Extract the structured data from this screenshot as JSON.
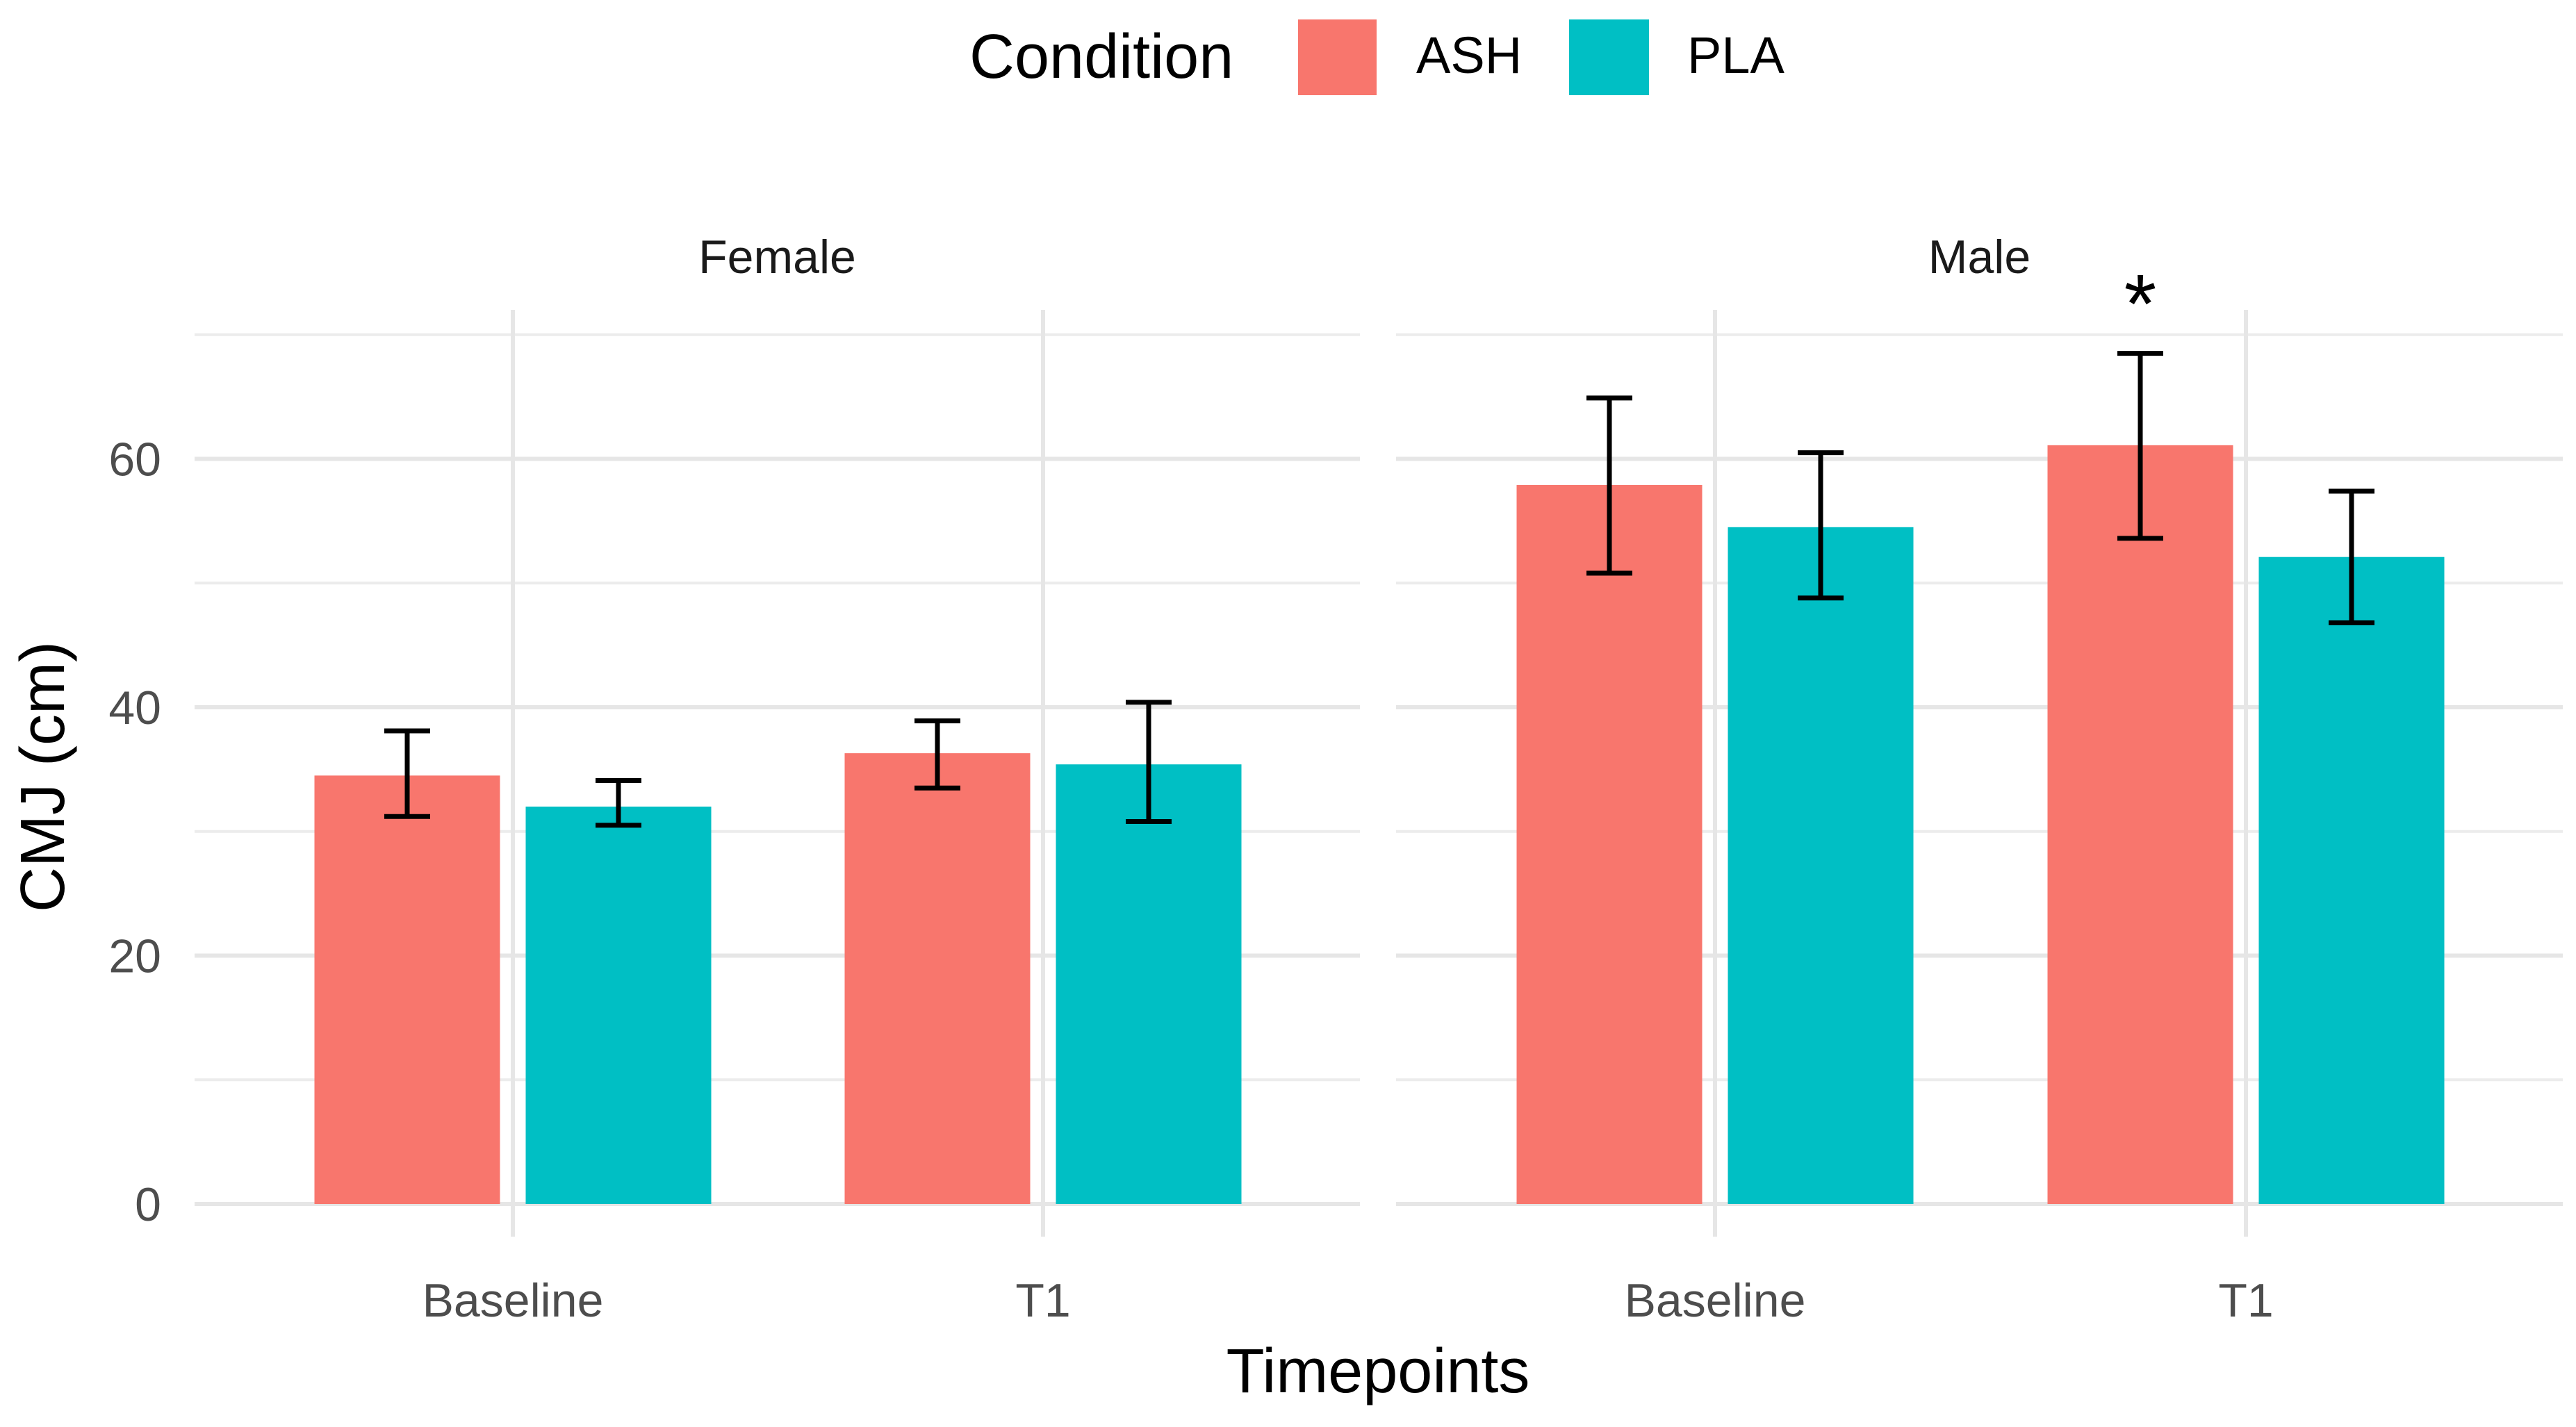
{
  "chart_data": {
    "type": "bar",
    "title": "",
    "xlabel": "Timepoints",
    "ylabel": "CMJ (cm)",
    "ylim": [
      0,
      72
    ],
    "yticks": [
      0,
      20,
      40,
      60
    ],
    "grid": true,
    "legend": {
      "title": "Condition",
      "placement": "top",
      "entries": [
        "ASH",
        "PLA"
      ]
    },
    "colors": {
      "ASH": "#F8766D",
      "PLA": "#00BFC4"
    },
    "categories": [
      "Baseline",
      "T1"
    ],
    "facets": [
      {
        "label": "Female",
        "series": [
          {
            "name": "ASH",
            "values": [
              34.5,
              36.3
            ],
            "err_low": [
              31.2,
              33.5
            ],
            "err_high": [
              38.1,
              38.9
            ]
          },
          {
            "name": "PLA",
            "values": [
              32.0,
              35.4
            ],
            "err_low": [
              30.5,
              30.8
            ],
            "err_high": [
              34.1,
              40.4
            ]
          }
        ],
        "annotations": []
      },
      {
        "label": "Male",
        "series": [
          {
            "name": "ASH",
            "values": [
              57.9,
              61.1
            ],
            "err_low": [
              50.8,
              53.6
            ],
            "err_high": [
              64.9,
              68.5
            ]
          },
          {
            "name": "PLA",
            "values": [
              54.5,
              52.1
            ],
            "err_low": [
              48.8,
              46.8
            ],
            "err_high": [
              60.5,
              57.4
            ]
          }
        ],
        "annotations": [
          {
            "text": "*",
            "category": "T1",
            "series": "ASH"
          }
        ]
      }
    ]
  }
}
